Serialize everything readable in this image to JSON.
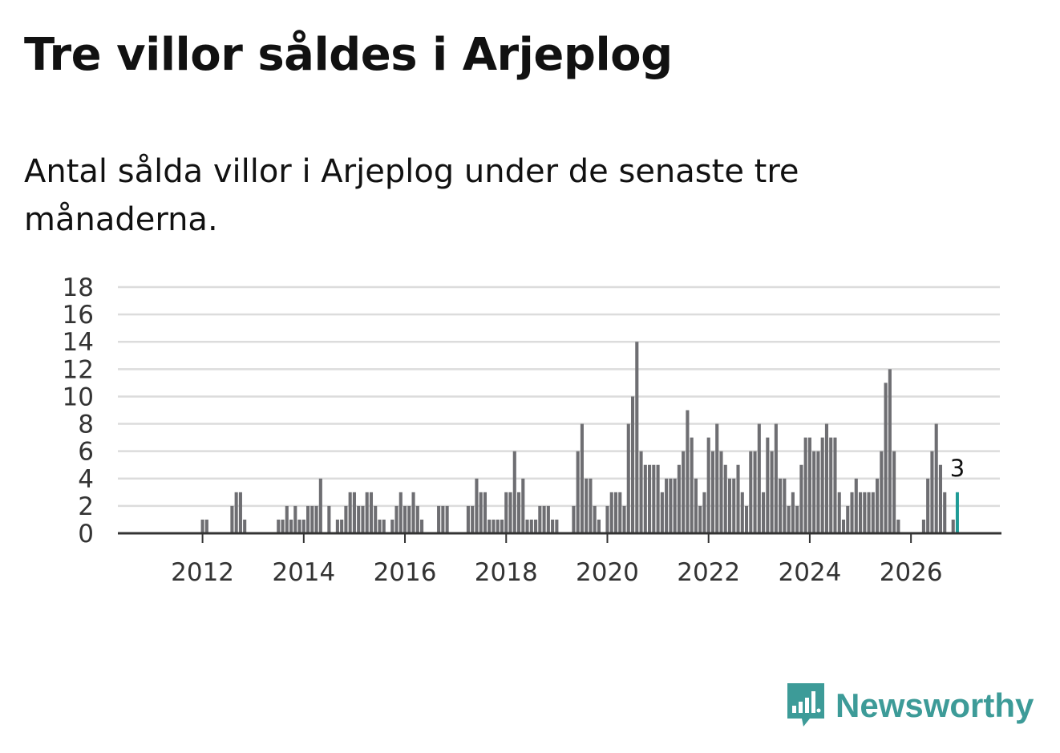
{
  "header": {
    "title": "Tre villor såldes i Arjeplog",
    "subtitle": "Antal sålda villor i Arjeplog under de senaste tre månaderna."
  },
  "brand": {
    "name": "Newsworthy"
  },
  "colors": {
    "bar": "#6e6e72",
    "highlight": "#1f9b96",
    "grid": "#dcdcdc",
    "axis": "#333333",
    "brand": "#3d9b98"
  },
  "chart_data": {
    "type": "bar",
    "title": "Tre villor såldes i Arjeplog",
    "xlabel": "",
    "ylabel": "",
    "ylim": [
      0,
      18
    ],
    "yticks": [
      0,
      2,
      4,
      6,
      8,
      10,
      12,
      14,
      16,
      18
    ],
    "xticks": [
      "2012",
      "2014",
      "2016",
      "2018",
      "2020",
      "2022",
      "2024",
      "2026"
    ],
    "start": "2011-03",
    "frequency": "monthly (rolling three-month count)",
    "values": [
      0,
      0,
      0,
      0,
      0,
      0,
      0,
      0,
      0,
      0,
      1,
      1,
      0,
      0,
      0,
      0,
      0,
      2,
      3,
      3,
      1,
      0,
      0,
      0,
      0,
      0,
      0,
      0,
      1,
      1,
      2,
      1,
      2,
      1,
      1,
      2,
      2,
      2,
      4,
      0,
      2,
      0,
      1,
      1,
      2,
      3,
      3,
      2,
      2,
      3,
      3,
      2,
      1,
      1,
      0,
      1,
      2,
      3,
      2,
      2,
      3,
      2,
      1,
      0,
      0,
      0,
      2,
      2,
      2,
      0,
      0,
      0,
      0,
      2,
      2,
      4,
      3,
      3,
      1,
      1,
      1,
      1,
      3,
      3,
      6,
      3,
      4,
      1,
      1,
      1,
      2,
      2,
      2,
      1,
      1,
      0,
      0,
      0,
      2,
      6,
      8,
      4,
      4,
      2,
      1,
      0,
      2,
      3,
      3,
      3,
      2,
      8,
      10,
      14,
      6,
      5,
      5,
      5,
      5,
      3,
      4,
      4,
      4,
      5,
      6,
      9,
      7,
      4,
      2,
      3,
      7,
      6,
      8,
      6,
      5,
      4,
      4,
      5,
      3,
      2,
      6,
      6,
      8,
      3,
      7,
      6,
      8,
      4,
      4,
      2,
      3,
      2,
      5,
      7,
      7,
      6,
      6,
      7,
      8,
      7,
      7,
      3,
      1,
      2,
      3,
      4,
      3,
      3,
      3,
      3,
      4,
      6,
      11,
      12,
      6,
      1,
      0,
      0,
      0,
      0,
      0,
      1,
      4,
      6,
      8,
      5,
      3,
      0,
      1,
      3
    ],
    "highlight": {
      "label": "3",
      "value": 3,
      "index": "last"
    }
  }
}
